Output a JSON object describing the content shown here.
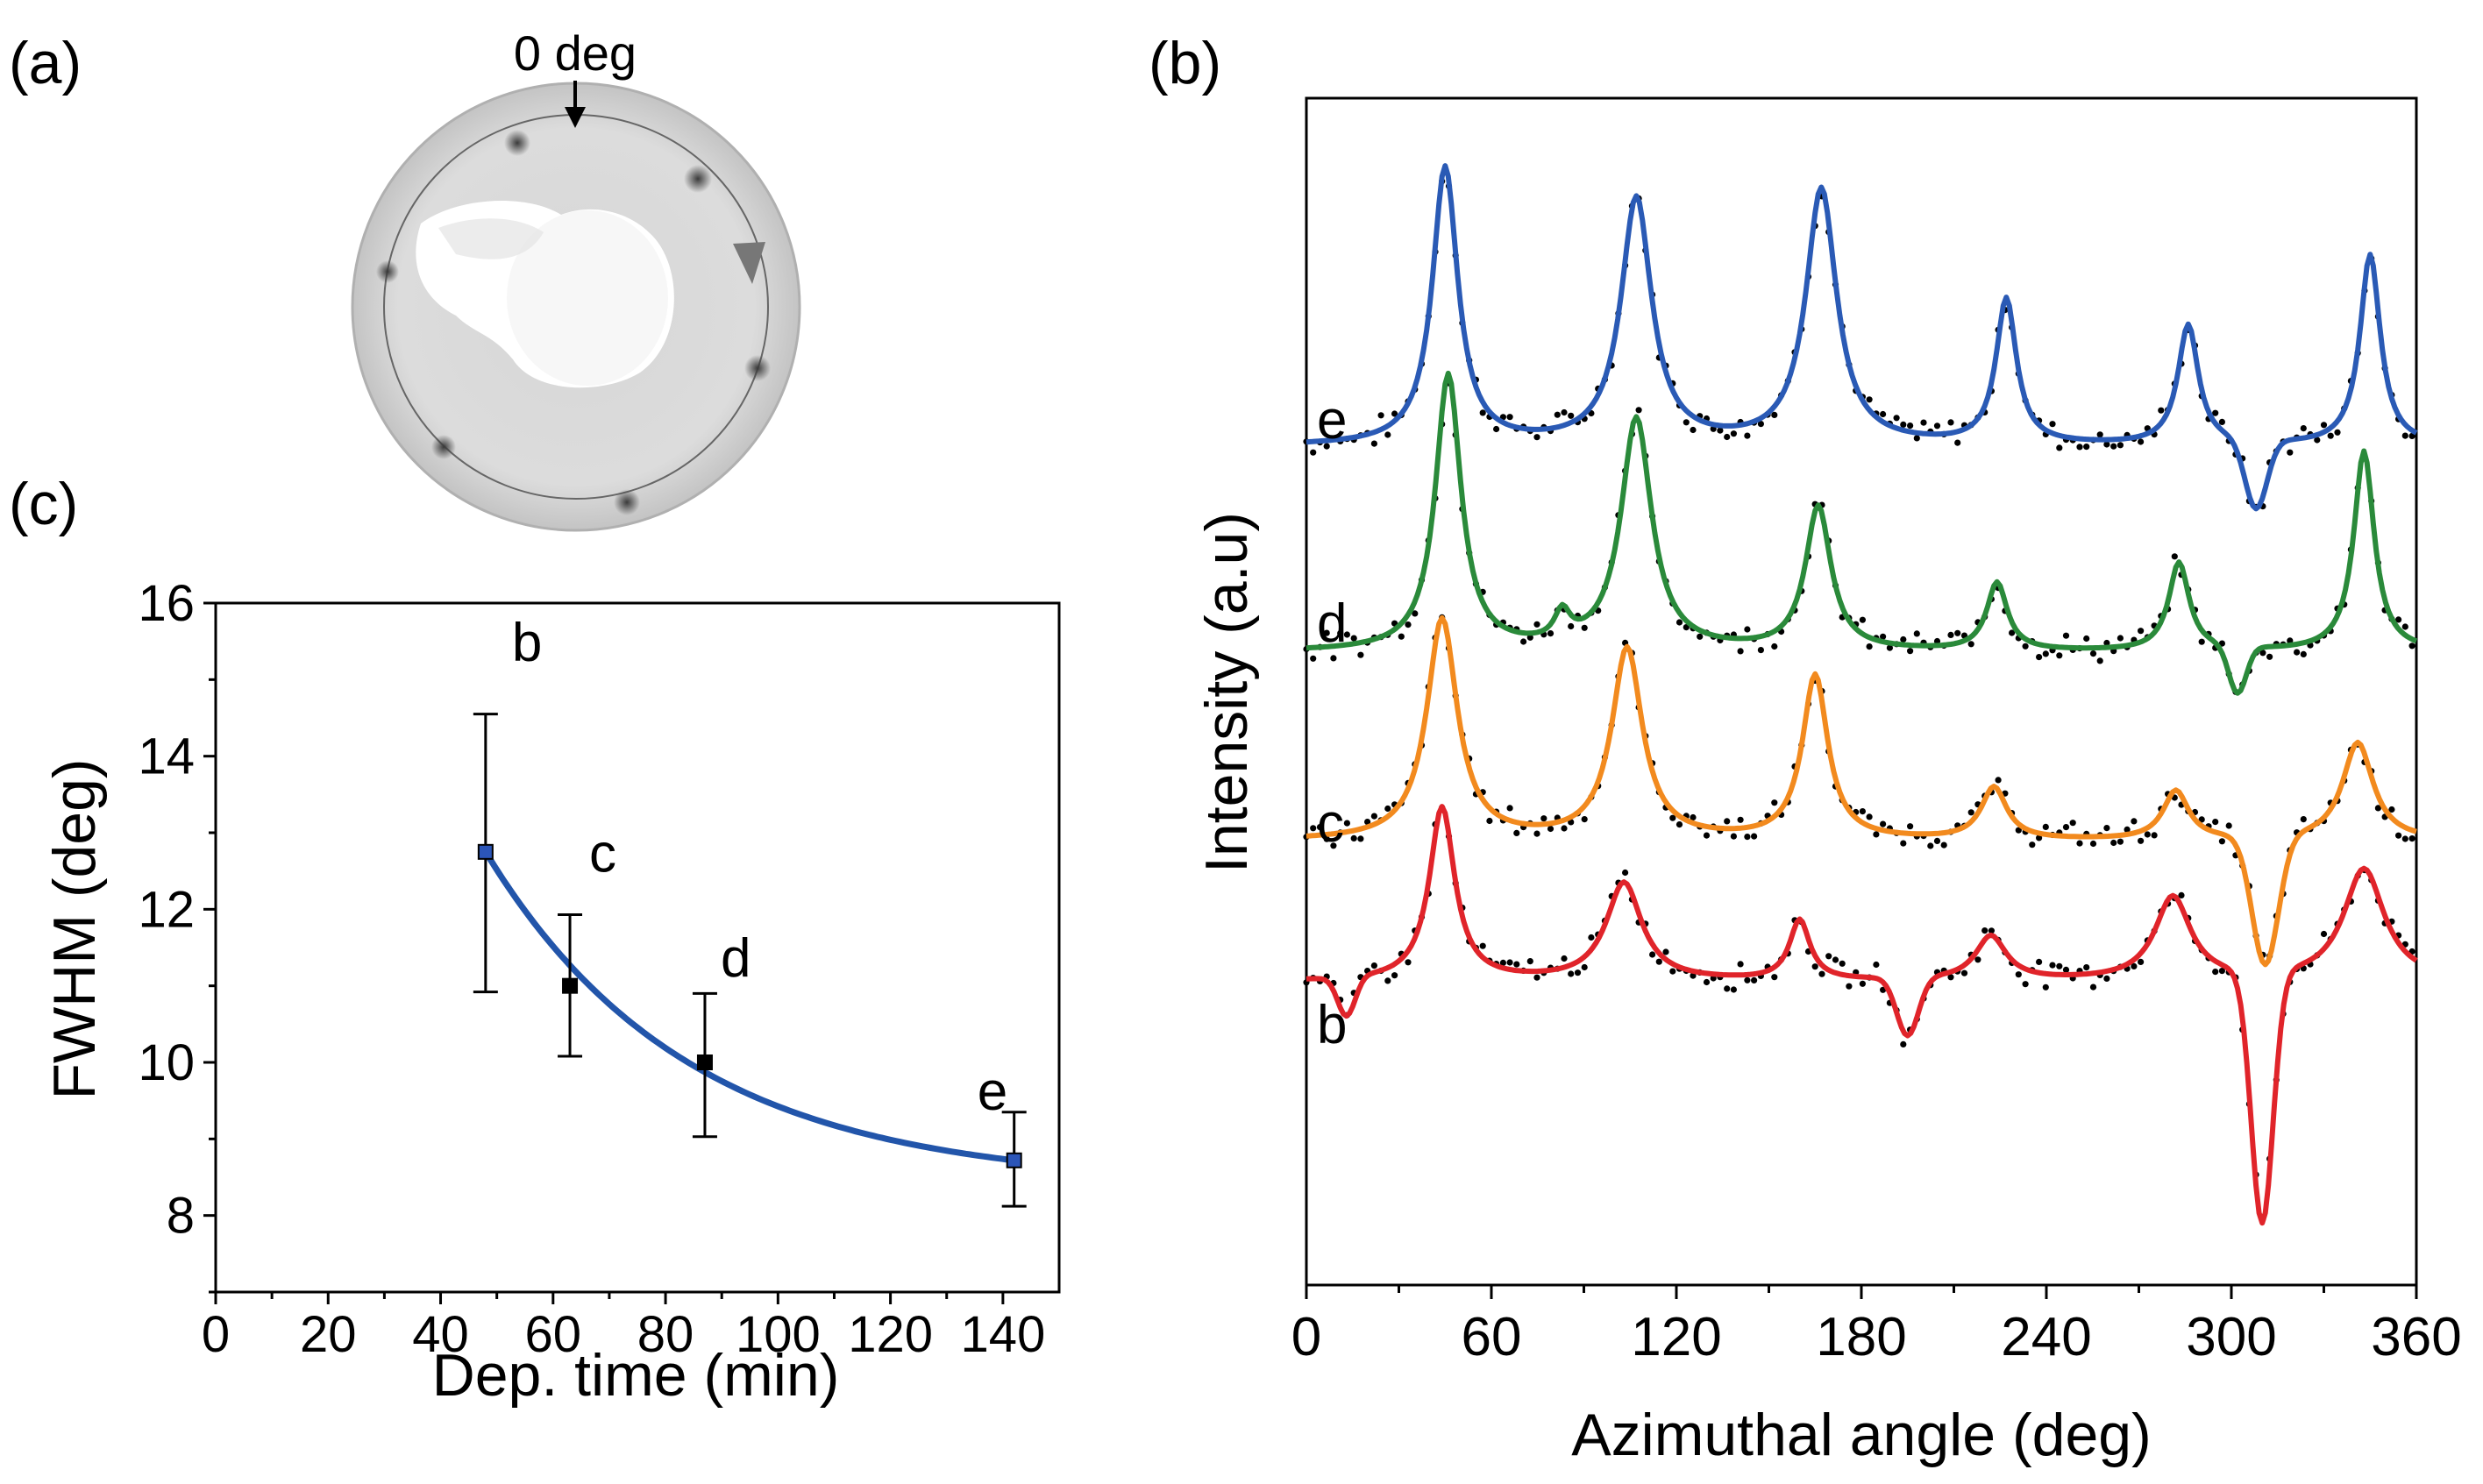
{
  "panels": {
    "a": {
      "label": "(a)",
      "arrow_label": "0 deg"
    },
    "b": {
      "label": "(b)"
    },
    "c": {
      "label": "(c)"
    }
  },
  "chart_data": [
    {
      "id": "c",
      "type": "scatter",
      "title": "",
      "xlabel": "Dep. time (min)",
      "ylabel": "FWHM (deg)",
      "xlim": [
        0,
        150
      ],
      "ylim": [
        7,
        16
      ],
      "xticks": [
        0,
        20,
        40,
        60,
        80,
        100,
        120,
        140
      ],
      "yticks": [
        8,
        10,
        12,
        14,
        16
      ],
      "points": [
        {
          "label": "b",
          "x": 48,
          "y": 12.75,
          "err_low": 10.92,
          "err_high": 14.55,
          "color": "#2b55b8"
        },
        {
          "label": "c",
          "x": 63,
          "y": 11.0,
          "err_low": 10.08,
          "err_high": 11.93,
          "color": "#000000"
        },
        {
          "label": "d",
          "x": 87,
          "y": 10.0,
          "err_low": 9.03,
          "err_high": 10.9,
          "color": "#000000"
        },
        {
          "label": "e",
          "x": 142,
          "y": 8.72,
          "err_low": 8.12,
          "err_high": 9.35,
          "color": "#2b55b8"
        }
      ],
      "fit": {
        "type": "exponential decay",
        "color": "#2255aa",
        "x_range": [
          48,
          142
        ],
        "y0": 8.4,
        "amplitude": 4.35,
        "tau": 36
      }
    },
    {
      "id": "b",
      "type": "line",
      "title": "",
      "xlabel": "Azimuthal angle (deg)",
      "ylabel": "Intensity (a.u)",
      "xlim": [
        0,
        360
      ],
      "xticks": [
        0,
        60,
        120,
        180,
        240,
        300,
        360
      ],
      "series": [
        {
          "name": "e",
          "color": "#2a5ab5",
          "baseline": 0.17,
          "peaks": [
            [
              45,
              1.76,
              5
            ],
            [
              107,
              1.56,
              6
            ],
            [
              167,
              1.62,
              6
            ],
            [
              227,
              0.92,
              4
            ],
            [
              286,
              0.76,
              4
            ],
            [
              345,
              1.21,
              4
            ]
          ],
          "dips": [
            [
              308,
              0.44,
              5
            ]
          ]
        },
        {
          "name": "d",
          "color": "#2a8a3a",
          "baseline": 0.2,
          "peaks": [
            [
              46,
              1.75,
              5
            ],
            [
              107,
              1.47,
              6
            ],
            [
              83,
              0.18,
              3
            ],
            [
              166,
              0.91,
              5
            ],
            [
              224,
              0.43,
              4
            ],
            [
              283,
              0.56,
              4
            ],
            [
              343,
              1.27,
              4
            ]
          ],
          "dips": [
            [
              302,
              0.3,
              4
            ]
          ]
        },
        {
          "name": "c",
          "color": "#f28a1e",
          "baseline": 0.17,
          "peaks": [
            [
              44,
              1.4,
              6
            ],
            [
              104,
              1.21,
              6
            ],
            [
              165,
              1.04,
              5
            ],
            [
              223,
              0.33,
              5
            ],
            [
              282,
              0.31,
              5
            ],
            [
              341,
              0.62,
              6
            ]
          ],
          "dips": [
            [
              311,
              0.82,
              6
            ]
          ]
        },
        {
          "name": "b",
          "color": "#e0242a",
          "baseline": 0.5,
          "peaks": [
            [
              44,
              1.1,
              5
            ],
            [
              103,
              0.62,
              7
            ],
            [
              160,
              0.38,
              4
            ],
            [
              222,
              0.28,
              6
            ],
            [
              281,
              0.53,
              7
            ],
            [
              343,
              0.71,
              8
            ]
          ],
          "dips": [
            [
              13,
              0.25,
              4
            ],
            [
              195,
              0.37,
              5
            ],
            [
              310,
              1.6,
              5
            ]
          ]
        }
      ]
    }
  ]
}
